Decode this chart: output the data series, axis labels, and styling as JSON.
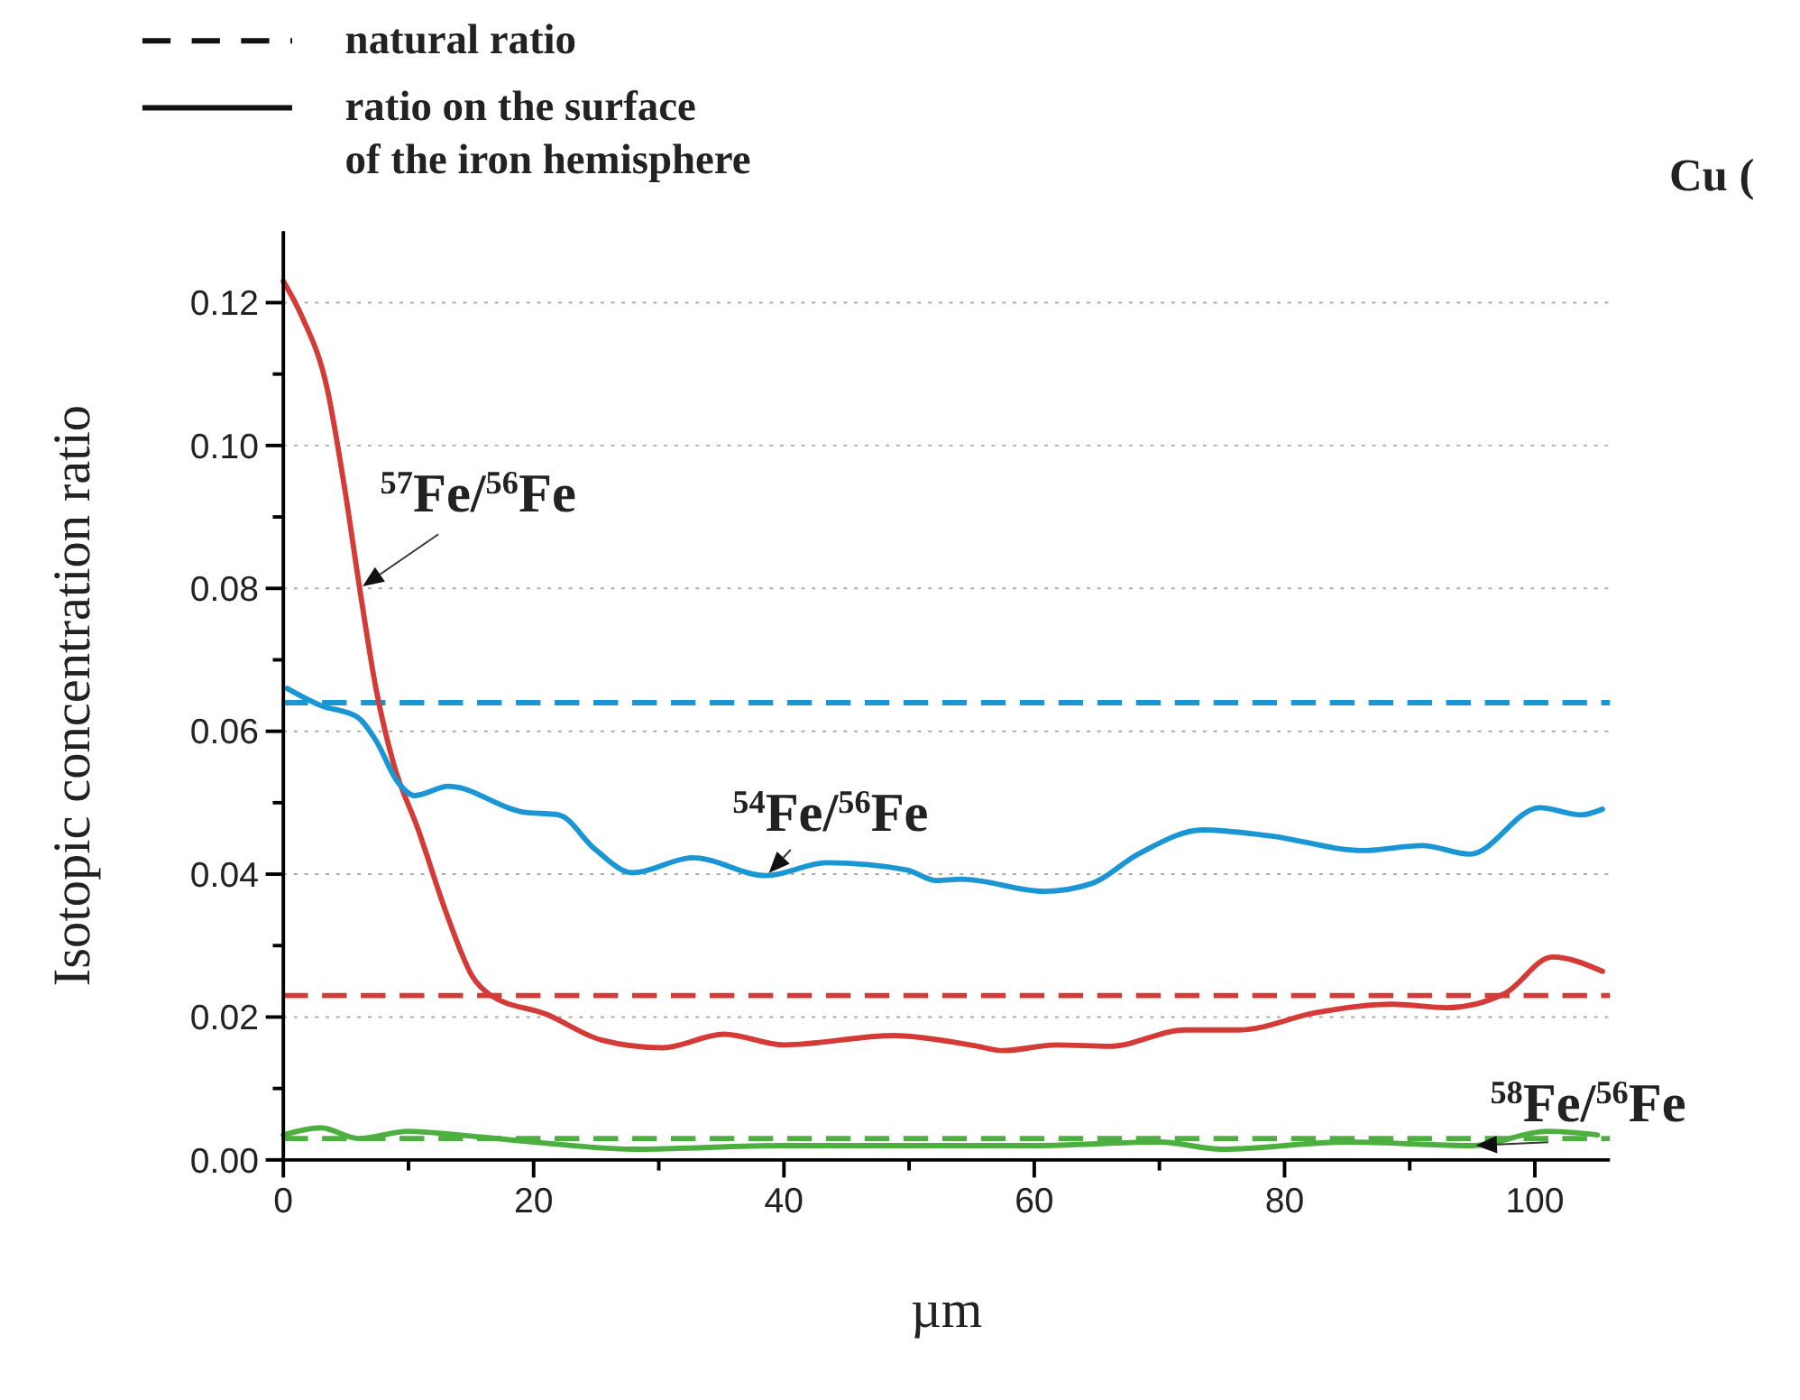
{
  "chart_data": {
    "type": "line",
    "xlabel": "µm",
    "ylabel": "Isotopic concentration ratio",
    "xlim": [
      0,
      106
    ],
    "ylim": [
      0,
      0.13
    ],
    "xticks": [
      0,
      {
        "value": 10,
        "label": null
      },
      20,
      {
        "value": 30,
        "label": null
      },
      40,
      {
        "value": 50,
        "label": null
      },
      60,
      {
        "value": 70,
        "label": null
      },
      80,
      {
        "value": 90,
        "label": null
      },
      100
    ],
    "yticks": [
      {
        "value": 0,
        "label": "0.00"
      },
      {
        "value": 0.01,
        "label": null
      },
      0.02,
      {
        "value": 0.03,
        "label": null
      },
      0.04,
      {
        "value": 0.05,
        "label": null
      },
      0.06,
      {
        "value": 0.07,
        "label": null
      },
      0.08,
      {
        "value": 0.09,
        "label": null
      },
      {
        "value": 0.1,
        "label": "0.10"
      },
      {
        "value": 0.11,
        "label": null
      },
      0.12
    ],
    "grid": "y",
    "line_style": "solid",
    "annotations": [
      "natural ratio",
      "ratio on the surface\nof the iron hemisphere",
      "Cu ("
    ],
    "ref_lines": [
      {
        "axis": "y",
        "value": 0.064,
        "color": "#1a96d4",
        "line_style": "dashed"
      },
      {
        "axis": "y",
        "value": 0.023,
        "color": "#d43a36",
        "line_style": "dashed"
      },
      {
        "axis": "y",
        "value": 0.003,
        "color": "#4caf3f",
        "line_style": "dashed"
      }
    ],
    "series": [
      {
        "name": "$^{57}$Fe/$^{56}$Fe",
        "color": "#d43a36",
        "x": [
          0,
          1.5,
          3.5,
          4.9,
          6.1,
          7.4,
          8.8,
          10.7,
          13.2,
          15.1,
          16.6,
          21,
          25.4,
          30.3,
          35.2,
          40,
          48.8,
          55.2,
          57.5,
          61.8,
          66,
          72.1,
          76.4,
          82.5,
          88.6,
          92.9,
          97.6,
          101.4,
          105.4
        ],
        "values": [
          0.123,
          0.118,
          0.108,
          0.094,
          0.08,
          0.066,
          0.0555,
          0.0466,
          0.0337,
          0.0257,
          0.023,
          0.0204,
          0.0168,
          0.0157,
          0.0176,
          0.0161,
          0.0174,
          0.016,
          0.0153,
          0.0161,
          0.0159,
          0.0182,
          0.0182,
          0.0206,
          0.0218,
          0.0213,
          0.0233,
          0.0284,
          0.0264
        ]
      },
      {
        "name": "$^{54}$Fe/$^{56}$Fe",
        "color": "#1a96d4",
        "x": [
          0.3,
          3,
          5.9,
          7.4,
          9.1,
          10.5,
          13.2,
          19.1,
          22,
          24.9,
          27.9,
          32.7,
          38.6,
          43.4,
          49.8,
          52.2,
          54.2,
          60.8,
          64.6,
          68.3,
          73.5,
          78.7,
          86.3,
          91,
          94.8,
          100.4,
          103.7,
          105.4
        ],
        "values": [
          0.066,
          0.0636,
          0.062,
          0.0587,
          0.053,
          0.051,
          0.0523,
          0.0487,
          0.0483,
          0.0435,
          0.0402,
          0.0423,
          0.0398,
          0.0416,
          0.0406,
          0.0391,
          0.0393,
          0.0376,
          0.0387,
          0.0428,
          0.0462,
          0.0454,
          0.0433,
          0.044,
          0.0428,
          0.0493,
          0.0483,
          0.0491
        ]
      },
      {
        "name": "$^{58}$Fe/$^{56}$Fe",
        "color": "#4caf3f",
        "x": [
          0,
          3,
          6,
          10,
          14,
          20,
          28,
          40,
          50,
          60,
          70,
          75,
          85,
          95,
          101,
          105
        ],
        "values": [
          0.0035,
          0.0045,
          0.003,
          0.004,
          0.0035,
          0.0025,
          0.0015,
          0.002,
          0.002,
          0.002,
          0.0025,
          0.0015,
          0.0025,
          0.002,
          0.004,
          0.0035
        ]
      }
    ]
  }
}
